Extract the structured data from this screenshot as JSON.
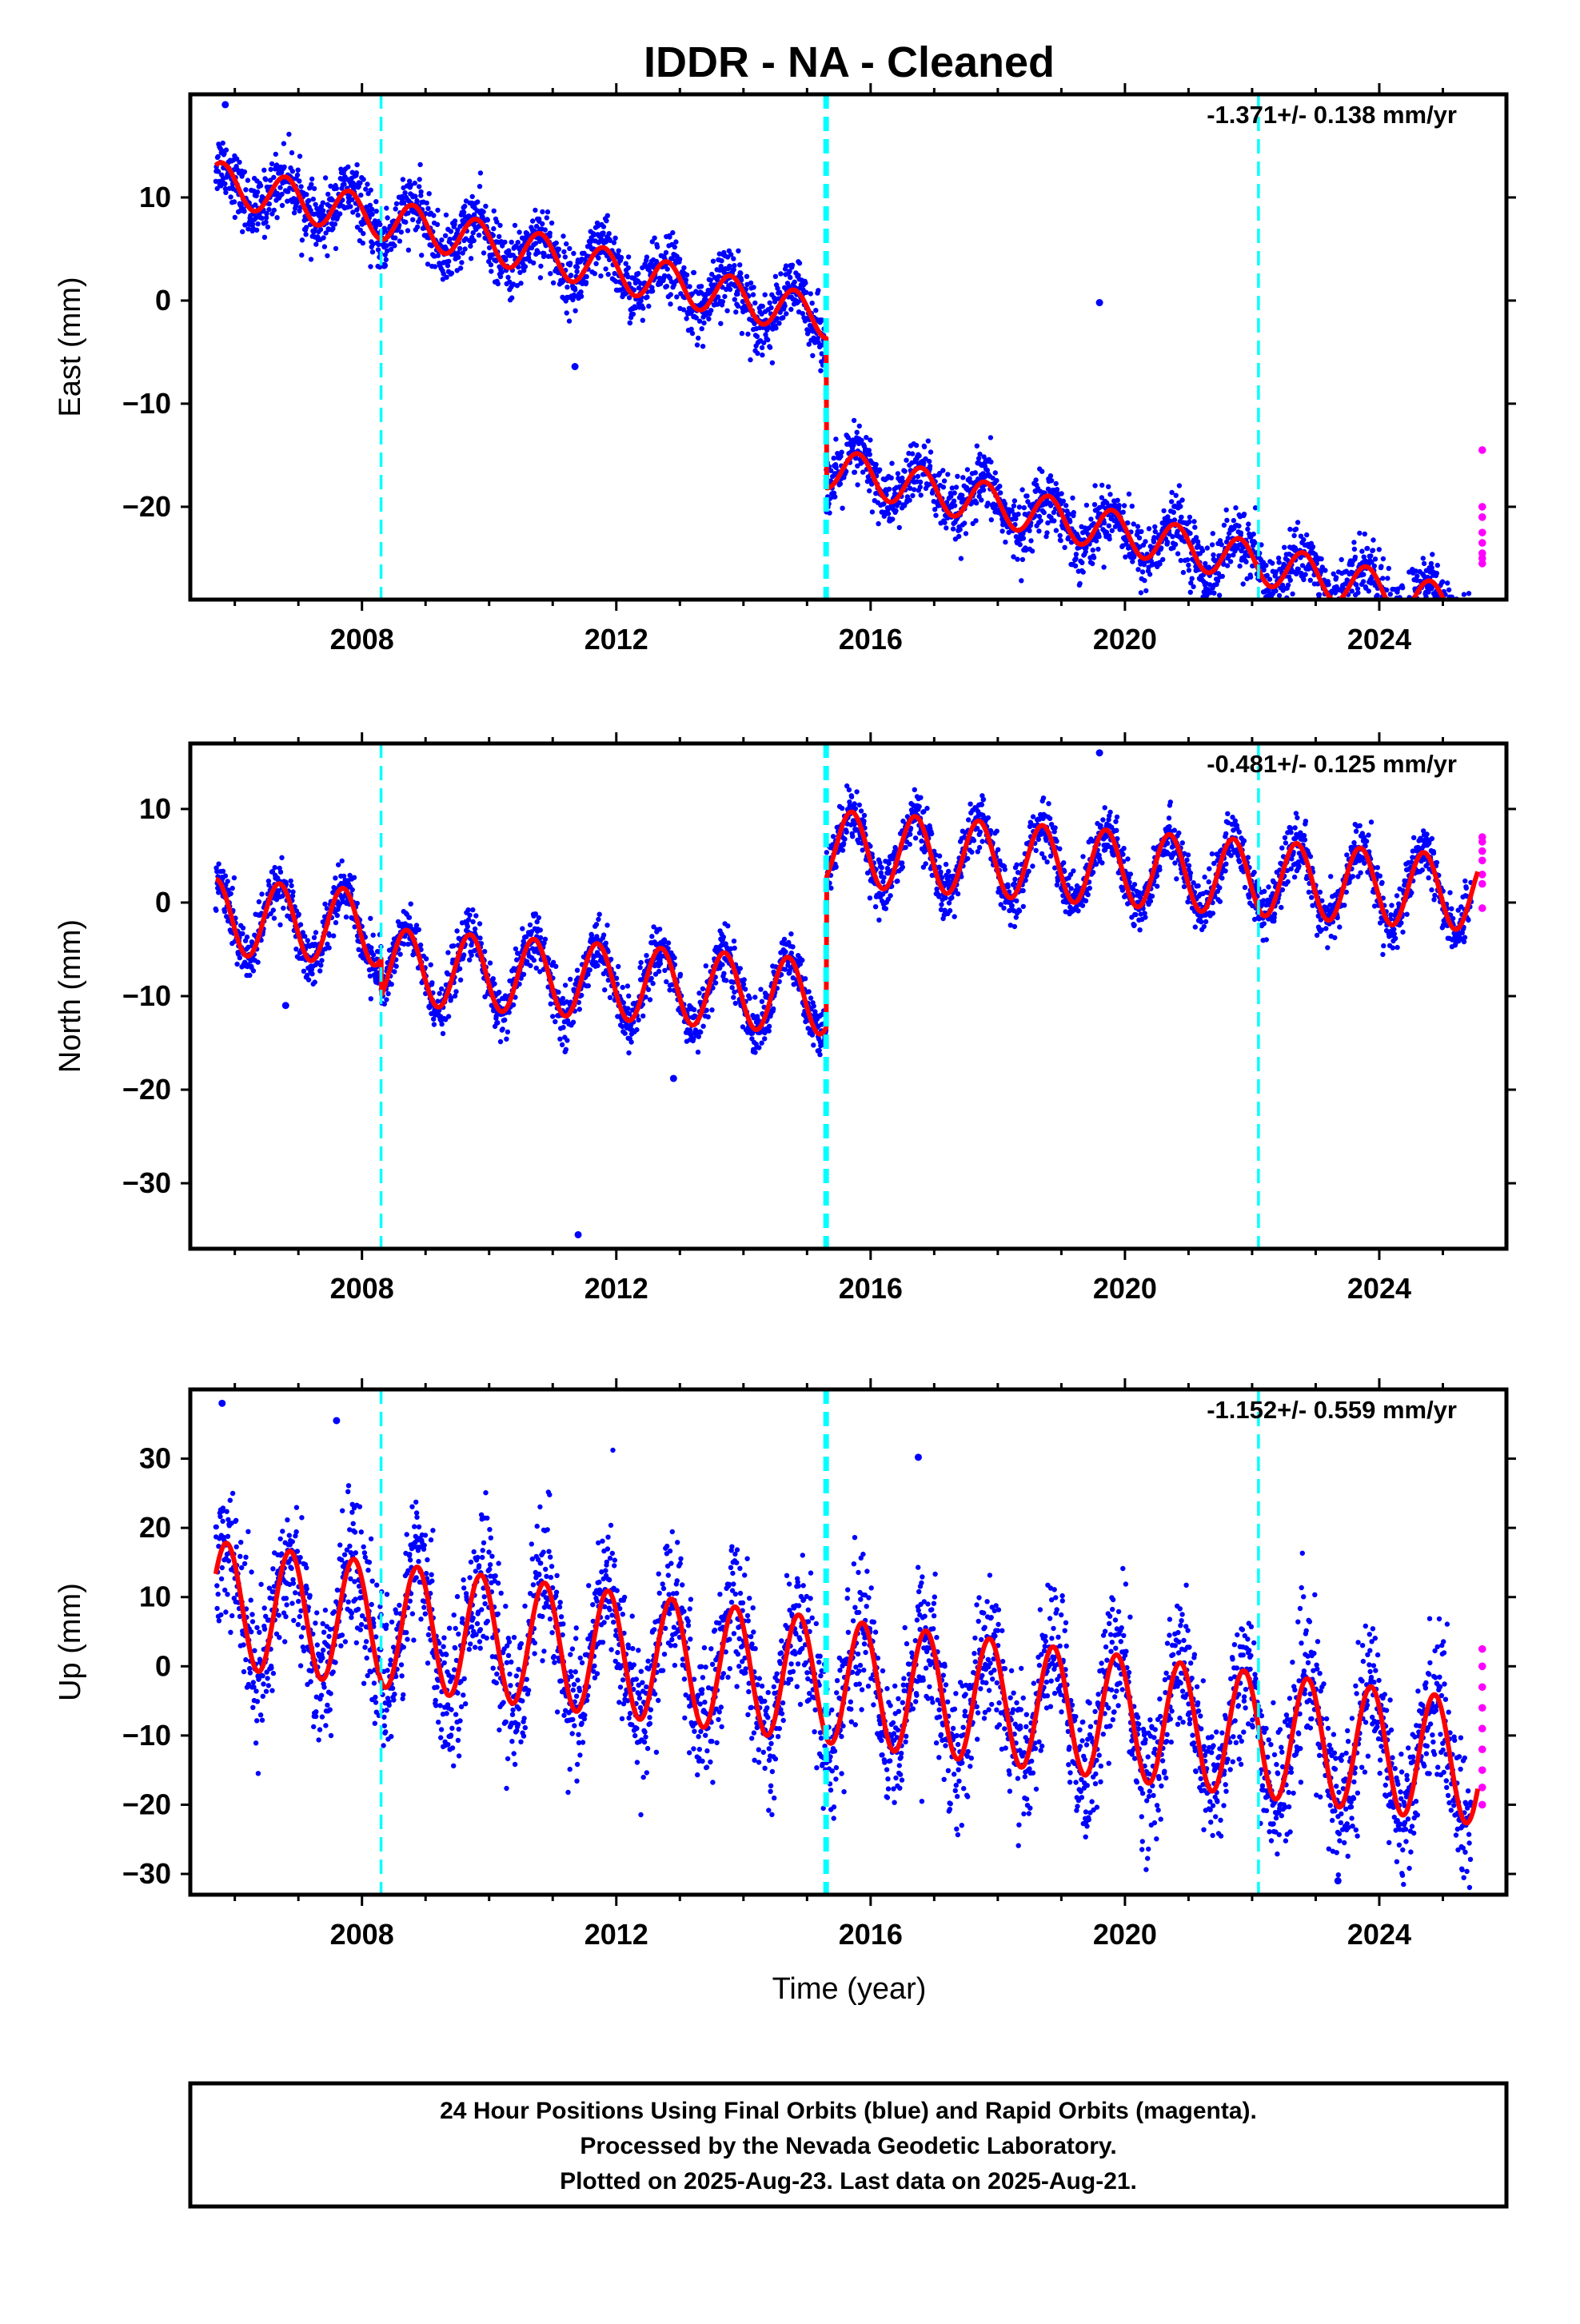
{
  "title": "IDDR  - NA - Cleaned",
  "x_axis_label": "Time (year)",
  "x_tick_labels": [
    "2008",
    "2012",
    "2016",
    "2020",
    "2024"
  ],
  "footer": {
    "line1": "24 Hour Positions Using Final Orbits (blue) and Rapid Orbits (magenta).",
    "line2": "Processed by the Nevada Geodetic Laboratory.",
    "line3": "Plotted on 2025-Aug-23. Last data on 2025-Aug-21."
  },
  "colors": {
    "final_orbits": "#0000ff",
    "rapid_orbits": "#ff00ff",
    "model_fit": "#ff0000",
    "step_events": "#00ffff",
    "frame": "#000000"
  },
  "chart_data": [
    {
      "type": "scatter",
      "component": "east",
      "ylabel": "East (mm)",
      "rate_label": "-1.371+/- 0.138 mm/yr",
      "xlim": [
        2005.3,
        2026.0
      ],
      "ylim": [
        -29,
        20
      ],
      "yticks": [
        10,
        0,
        -10,
        -20
      ],
      "ytick_labels": [
        "10",
        "0",
        "−10",
        "−20"
      ],
      "grid": false,
      "step_lines": [
        2008.3,
        2015.3,
        2022.1
      ],
      "data_range": [
        2005.7,
        2025.6
      ],
      "fit": {
        "intercept_at_start": 11.5,
        "rate_mm_per_yr": -1.371,
        "annual_amplitude": 2.0,
        "annual_phase_year_fraction": 0.55,
        "offsets": [
          {
            "year": 2008.3,
            "value": 0.0
          },
          {
            "year": 2015.3,
            "value": -14.5
          }
        ]
      },
      "scatter_sigma": 1.5,
      "outliers": [
        [
          2005.85,
          19.0
        ],
        [
          2011.35,
          -6.4
        ],
        [
          2019.6,
          -0.2
        ],
        [
          2008.35,
          3.4
        ]
      ],
      "rapid_orbit_points": [
        -14.5,
        -20.0,
        -21.0,
        -22.5,
        -23.5,
        -24.5,
        -25.0,
        -25.5
      ]
    },
    {
      "type": "scatter",
      "component": "north",
      "ylabel": "North (mm)",
      "rate_label": "-0.481+/- 0.125 mm/yr",
      "xlim": [
        2005.3,
        2026.0
      ],
      "ylim": [
        -37,
        17
      ],
      "yticks": [
        10,
        0,
        -10,
        -20,
        -30
      ],
      "ytick_labels": [
        "10",
        "0",
        "−10",
        "−20",
        "−30"
      ],
      "grid": false,
      "step_lines": [
        2008.3,
        2015.3,
        2022.1
      ],
      "data_range": [
        2005.7,
        2025.6
      ],
      "fit": {
        "intercept_at_start": -1.5,
        "rate_mm_per_yr": -0.481,
        "annual_amplitude": 4.0,
        "annual_phase_year_fraction": 0.45,
        "offsets": [
          {
            "year": 2008.3,
            "value": -4.0
          },
          {
            "year": 2015.3,
            "value": 16.0
          }
        ]
      },
      "scatter_sigma": 1.4,
      "outliers": [
        [
          2011.4,
          -35.5
        ],
        [
          2019.6,
          16.0
        ],
        [
          2012.9,
          -18.8
        ],
        [
          2006.8,
          -11.0
        ]
      ],
      "rapid_orbit_points": [
        -0.6,
        2.0,
        3.0,
        4.5,
        5.5,
        6.5,
        7.0
      ]
    },
    {
      "type": "scatter",
      "component": "up",
      "ylabel": "Up (mm)",
      "rate_label": "-1.152+/- 0.559 mm/yr",
      "xlim": [
        2005.3,
        2026.0
      ],
      "ylim": [
        -33,
        40
      ],
      "yticks": [
        30,
        20,
        10,
        0,
        -10,
        -20,
        -30
      ],
      "ytick_labels": [
        "30",
        "20",
        "10",
        "0",
        "−10",
        "−20",
        "−30"
      ],
      "grid": false,
      "step_lines": [
        2008.3,
        2015.3,
        2022.1
      ],
      "data_range": [
        2005.7,
        2025.6
      ],
      "fit": {
        "intercept_at_start": 9.0,
        "rate_mm_per_yr": -1.152,
        "annual_amplitude": 9.0,
        "annual_phase_year_fraction": 0.62,
        "offsets": []
      },
      "scatter_sigma": 5.0,
      "outliers": [
        [
          2005.8,
          38.0
        ],
        [
          2016.75,
          30.2
        ],
        [
          2007.6,
          35.5
        ],
        [
          2023.35,
          -31.0
        ]
      ],
      "rapid_orbit_points": [
        2.5,
        0.0,
        -3.0,
        -6.0,
        -9.0,
        -12.0,
        -15.0,
        -17.5,
        -20.0
      ]
    }
  ]
}
